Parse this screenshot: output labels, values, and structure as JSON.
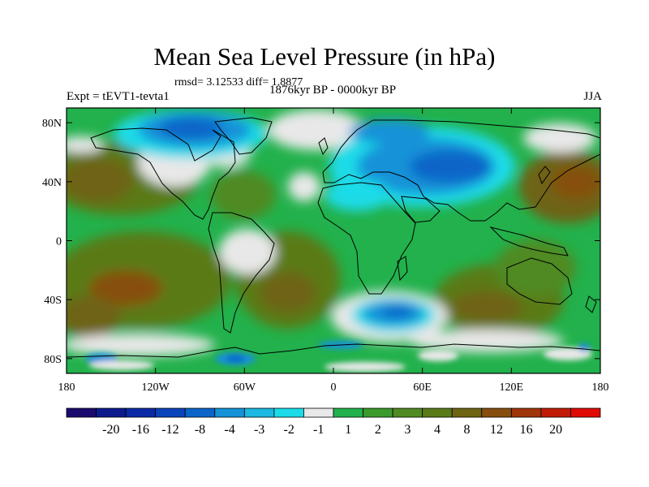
{
  "title": "Mean Sea Level Pressure (in hPa)",
  "stats": {
    "rmsd_line": "rmsd= 3.12533 diff= 1.8877"
  },
  "experiment": "Expt = tEVT1-tevta1",
  "period": "1876kyr BP - 0000kyr BP",
  "season": "JJA",
  "axes": {
    "lon_ticks": [
      {
        "value": -180,
        "label": "180"
      },
      {
        "value": -120,
        "label": "120W"
      },
      {
        "value": -60,
        "label": "60W"
      },
      {
        "value": 0,
        "label": "0"
      },
      {
        "value": 60,
        "label": "60E"
      },
      {
        "value": 120,
        "label": "120E"
      },
      {
        "value": 180,
        "label": "180"
      }
    ],
    "lat_ticks": [
      {
        "value": 80,
        "label": "80N"
      },
      {
        "value": 40,
        "label": "40N"
      },
      {
        "value": 0,
        "label": "0"
      },
      {
        "value": -40,
        "label": "40S"
      },
      {
        "value": -80,
        "label": "80S"
      }
    ],
    "lon_range": [
      -180,
      180
    ],
    "lat_range": [
      -90,
      90
    ]
  },
  "colorbar": {
    "colors": [
      "#1b0a6e",
      "#0c1a8c",
      "#0a2aa6",
      "#0a44bb",
      "#0b65c8",
      "#1592d8",
      "#1cb8e2",
      "#1cdbe8",
      "#e8e8e8",
      "#22b14c",
      "#3c9a2c",
      "#508a22",
      "#5a7a18",
      "#6e6412",
      "#864f0e",
      "#a0350a",
      "#c01a06",
      "#e00a04"
    ],
    "labels": [
      "-20",
      "-16",
      "-12",
      "-8",
      "-4",
      "-3",
      "-2",
      "-1",
      "1",
      "2",
      "3",
      "4",
      "8",
      "12",
      "16",
      "20"
    ]
  },
  "chart_data": {
    "type": "heatmap",
    "title": "Mean Sea Level Pressure (in hPa)",
    "variable": "Mean Sea Level Pressure difference (hPa)",
    "x_range": [
      -180,
      180
    ],
    "y_range": [
      -90,
      90
    ],
    "levels": [
      -20,
      -16,
      -12,
      -8,
      -4,
      -3,
      -2,
      -1,
      1,
      2,
      3,
      4,
      8,
      12,
      16,
      20
    ],
    "features": [
      {
        "lon": -55,
        "lat": 72,
        "value": -3.5
      },
      {
        "lon": -10,
        "lat": 72,
        "value": -1.5
      },
      {
        "lon": 40,
        "lat": 65,
        "value": -3.5
      },
      {
        "lon": 70,
        "lat": 45,
        "value": -4.5
      },
      {
        "lon": 25,
        "lat": 35,
        "value": -2.5
      },
      {
        "lon": 40,
        "lat": -55,
        "value": -5
      },
      {
        "lon": -110,
        "lat": -75,
        "value": -3
      },
      {
        "lon": -65,
        "lat": -75,
        "value": -4
      },
      {
        "lon": -40,
        "lat": -8,
        "value": 0
      },
      {
        "lon": 10,
        "lat": -55,
        "value": 0
      },
      {
        "lon": -165,
        "lat": 40,
        "value": 5
      },
      {
        "lon": -145,
        "lat": -35,
        "value": 8
      },
      {
        "lon": -105,
        "lat": -30,
        "value": 5
      },
      {
        "lon": -25,
        "lat": -35,
        "value": 5
      },
      {
        "lon": 100,
        "lat": -40,
        "value": 7
      },
      {
        "lon": 165,
        "lat": 45,
        "value": 9
      },
      {
        "lon": 160,
        "lat": 40,
        "value": 5
      }
    ]
  }
}
